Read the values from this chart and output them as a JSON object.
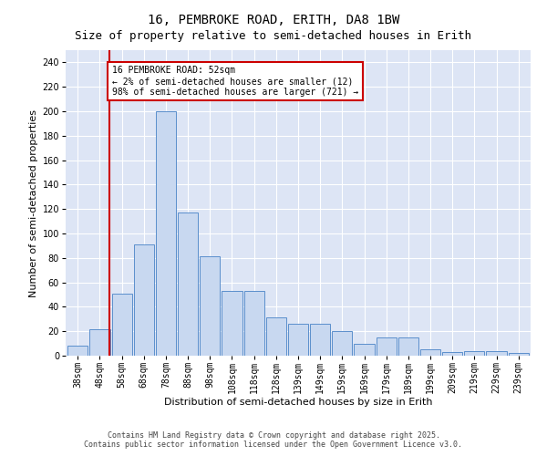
{
  "title": "16, PEMBROKE ROAD, ERITH, DA8 1BW",
  "subtitle": "Size of property relative to semi-detached houses in Erith",
  "xlabel": "Distribution of semi-detached houses by size in Erith",
  "ylabel": "Number of semi-detached properties",
  "categories": [
    "38sqm",
    "48sqm",
    "58sqm",
    "68sqm",
    "78sqm",
    "88sqm",
    "98sqm",
    "108sqm",
    "118sqm",
    "128sqm",
    "139sqm",
    "149sqm",
    "159sqm",
    "169sqm",
    "179sqm",
    "189sqm",
    "199sqm",
    "209sqm",
    "219sqm",
    "229sqm",
    "239sqm"
  ],
  "values": [
    8,
    22,
    51,
    91,
    200,
    117,
    81,
    53,
    53,
    31,
    26,
    26,
    20,
    10,
    15,
    15,
    5,
    3,
    4,
    4,
    2
  ],
  "bar_color": "#c8d8f0",
  "bar_edge_color": "#5b8fcc",
  "red_line_x": 1.45,
  "annotation_title": "16 PEMBROKE ROAD: 52sqm",
  "annotation_line1": "← 2% of semi-detached houses are smaller (12)",
  "annotation_line2": "98% of semi-detached houses are larger (721) →",
  "annotation_box_facecolor": "#ffffff",
  "annotation_box_edgecolor": "#cc0000",
  "red_line_color": "#cc0000",
  "ylim": [
    0,
    250
  ],
  "yticks": [
    0,
    20,
    40,
    60,
    80,
    100,
    120,
    140,
    160,
    180,
    200,
    220,
    240
  ],
  "background_color": "#dde5f5",
  "grid_color": "#ffffff",
  "footer": "Contains HM Land Registry data © Crown copyright and database right 2025.\nContains public sector information licensed under the Open Government Licence v3.0.",
  "title_fontsize": 10,
  "subtitle_fontsize": 9,
  "axis_fontsize": 8,
  "tick_fontsize": 7,
  "annotation_fontsize": 7,
  "footer_fontsize": 6
}
